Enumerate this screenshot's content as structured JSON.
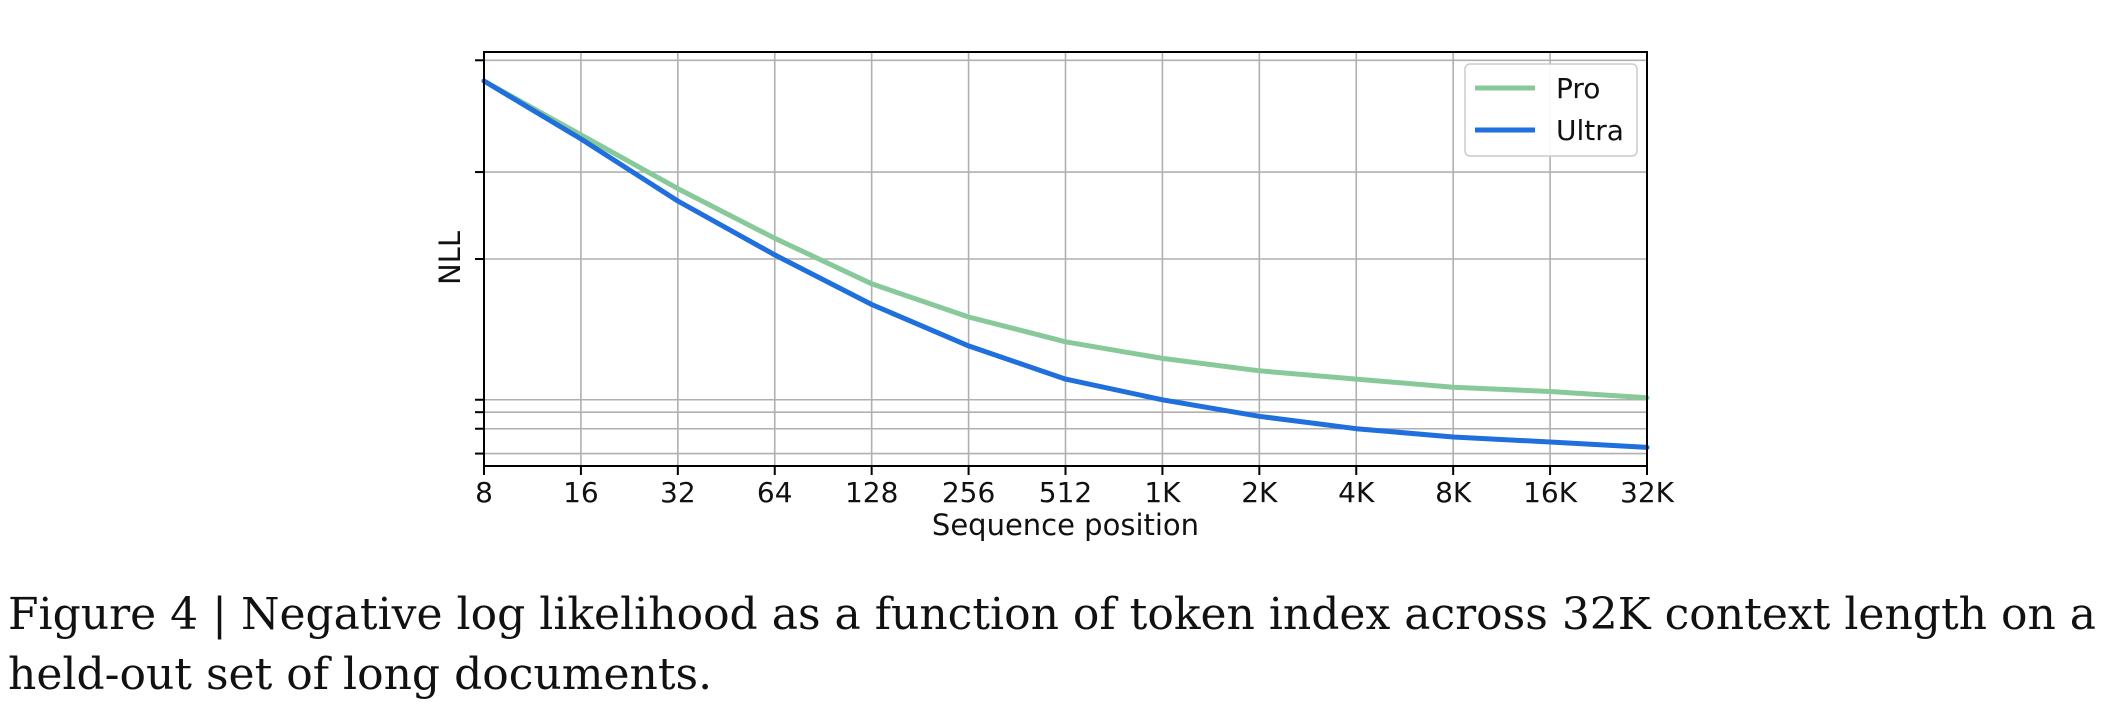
{
  "chart_data": {
    "type": "line",
    "title": "",
    "xlabel": "Sequence position",
    "ylabel": "NLL",
    "x_scale": "log2",
    "x_ticks": [
      8,
      16,
      32,
      64,
      128,
      256,
      512,
      1024,
      2048,
      4096,
      8192,
      16384,
      32768
    ],
    "x_tick_labels": [
      "8",
      "16",
      "32",
      "64",
      "128",
      "256",
      "512",
      "1K",
      "2K",
      "4K",
      "8K",
      "16K",
      "32K"
    ],
    "xlim": [
      8,
      32768
    ],
    "ylim": [
      0.0,
      1.0
    ],
    "y_ticks": [
      0.03,
      0.09,
      0.13,
      0.16,
      0.5,
      0.71,
      0.98
    ],
    "y_tick_labels": [],
    "grid": true,
    "legend_position": "top-right",
    "series": [
      {
        "name": "Pro",
        "color": "#88c999",
        "x": [
          8,
          16,
          32,
          64,
          128,
          256,
          512,
          1024,
          2048,
          4096,
          8192,
          16384,
          32768
        ],
        "y": [
          0.93,
          0.8,
          0.67,
          0.55,
          0.44,
          0.36,
          0.3,
          0.26,
          0.23,
          0.21,
          0.19,
          0.18,
          0.165
        ]
      },
      {
        "name": "Ultra",
        "color": "#1f6fdc",
        "x": [
          8,
          16,
          32,
          64,
          128,
          256,
          512,
          1024,
          2048,
          4096,
          8192,
          16384,
          32768
        ],
        "y": [
          0.93,
          0.79,
          0.64,
          0.51,
          0.39,
          0.29,
          0.21,
          0.16,
          0.12,
          0.09,
          0.07,
          0.058,
          0.045
        ]
      }
    ]
  },
  "caption": "Figure 4 | Negative log likelihood as a function of token index across 32K context length on a held-out set of long documents."
}
